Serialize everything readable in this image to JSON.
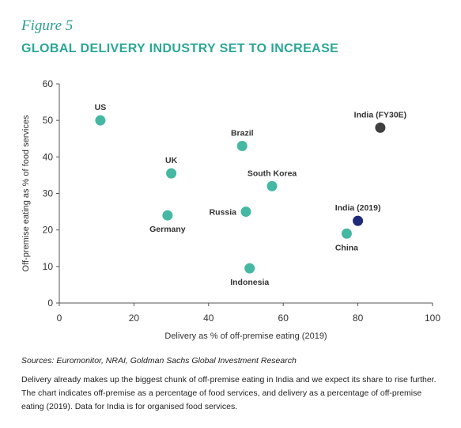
{
  "figure_label": "Figure 5",
  "chart_data": {
    "type": "scatter",
    "title": "GLOBAL DELIVERY INDUSTRY SET TO INCREASE",
    "xlabel": "Delivery as % of off-premise eating (2019)",
    "ylabel": "Off-premise eating as % of food services",
    "xlim": [
      0,
      100
    ],
    "ylim": [
      0,
      60
    ],
    "xticks": [
      0,
      20,
      40,
      60,
      80,
      100
    ],
    "yticks": [
      0,
      10,
      20,
      30,
      40,
      50,
      60
    ],
    "grid": false,
    "colors": {
      "default": "#45b8a3",
      "india_2019": "#1f2a7a",
      "india_fy30e": "#3f3f3f"
    },
    "points": [
      {
        "label": "US",
        "x": 11,
        "y": 50,
        "color_key": "default",
        "label_pos": "above"
      },
      {
        "label": "UK",
        "x": 30,
        "y": 35.5,
        "color_key": "default",
        "label_pos": "above"
      },
      {
        "label": "Germany",
        "x": 29,
        "y": 24,
        "color_key": "default",
        "label_pos": "below"
      },
      {
        "label": "Brazil",
        "x": 49,
        "y": 43,
        "color_key": "default",
        "label_pos": "above"
      },
      {
        "label": "South Korea",
        "x": 57,
        "y": 32,
        "color_key": "default",
        "label_pos": "above"
      },
      {
        "label": "Russia",
        "x": 50,
        "y": 25,
        "color_key": "default",
        "label_pos": "left"
      },
      {
        "label": "Indonesia",
        "x": 51,
        "y": 9.5,
        "color_key": "default",
        "label_pos": "below"
      },
      {
        "label": "China",
        "x": 77,
        "y": 19,
        "color_key": "default",
        "label_pos": "below"
      },
      {
        "label": "India (2019)",
        "x": 80,
        "y": 22.5,
        "color_key": "india_2019",
        "label_pos": "above"
      },
      {
        "label": "India (FY30E)",
        "x": 86,
        "y": 48,
        "color_key": "india_fy30e",
        "label_pos": "above"
      }
    ]
  },
  "sources": "Sources: Euromonitor, NRAI, Goldman Sachs Global Investment Research",
  "note": "Delivery already makes up the biggest chunk of off-premise eating in India and we expect its share to rise further. The chart indicates off-premise as a percentage of food services, and delivery as a percentage of off-premise eating (2019). Data for India is for organised food services."
}
